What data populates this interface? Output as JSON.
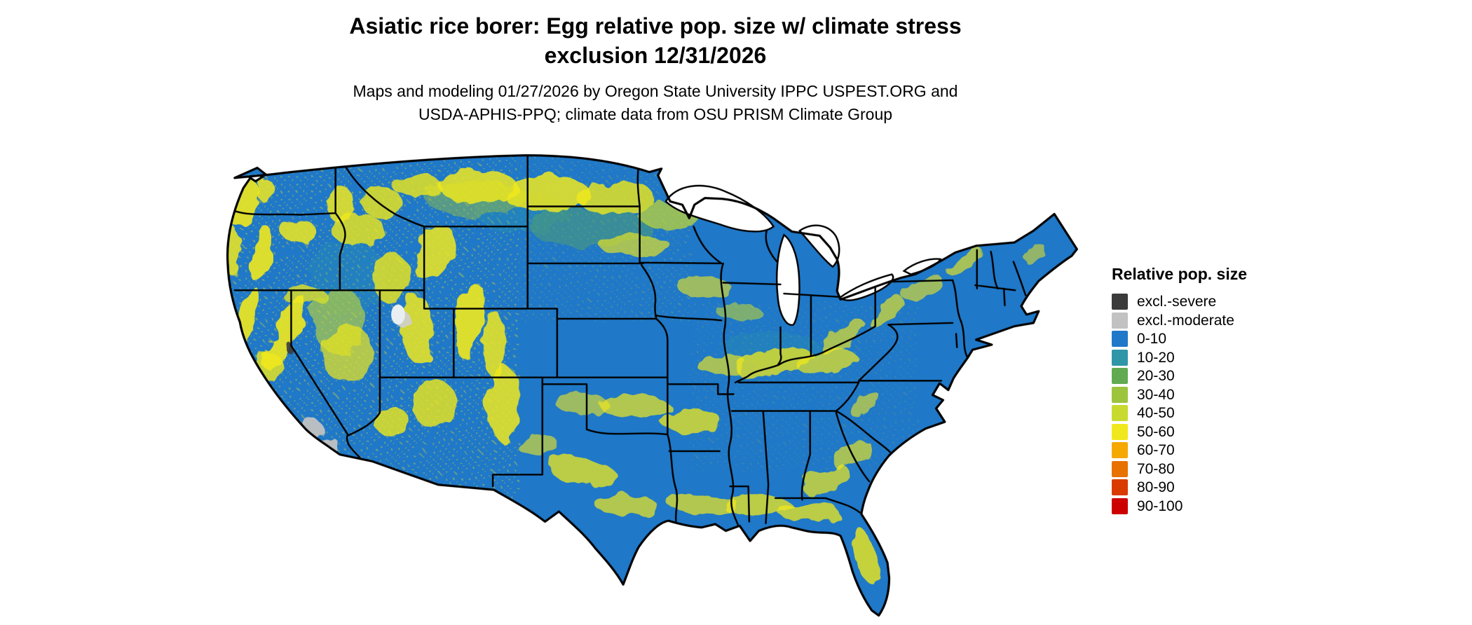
{
  "title": {
    "line1": "Asiatic rice borer: Egg relative pop. size w/ climate stress",
    "line2": "exclusion 12/31/2026"
  },
  "subtitle": {
    "line1": "Maps and modeling 01/27/2026 by Oregon State University IPPC USPEST.ORG and",
    "line2": "USDA-APHIS-PPQ; climate data from OSU PRISM Climate Group"
  },
  "legend": {
    "title": "Relative pop. size",
    "items": [
      {
        "label": "excl.-severe",
        "color": "#3b3b3b"
      },
      {
        "label": "excl.-moderate",
        "color": "#c2c2c2"
      },
      {
        "label": "0-10",
        "color": "#1f78c8"
      },
      {
        "label": "10-20",
        "color": "#2f96a8"
      },
      {
        "label": "20-30",
        "color": "#62aa52"
      },
      {
        "label": "30-40",
        "color": "#9cc43c"
      },
      {
        "label": "40-50",
        "color": "#c8da30"
      },
      {
        "label": "50-60",
        "color": "#f0e81c"
      },
      {
        "label": "60-70",
        "color": "#f5a800"
      },
      {
        "label": "70-80",
        "color": "#e77200"
      },
      {
        "label": "80-90",
        "color": "#d93a00"
      },
      {
        "label": "90-100",
        "color": "#cc0000"
      }
    ]
  },
  "map": {
    "region_label": "Contiguous United States",
    "land_color": "#1f78c8",
    "water_color": "#ffffff",
    "border_color": "#000000",
    "dominant_class": "0-10",
    "patch_classes_visible": [
      "excl.-moderate",
      "0-10",
      "10-20",
      "20-30",
      "30-40",
      "40-50",
      "50-60"
    ]
  }
}
